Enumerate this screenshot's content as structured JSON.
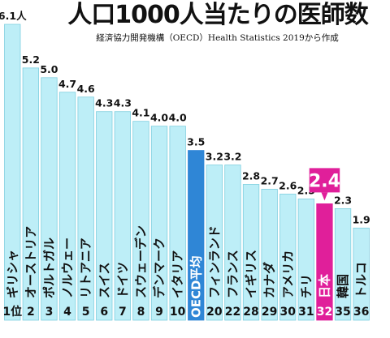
{
  "header": {
    "title": "人口1000人当たりの医師数",
    "subtitle": "経済協力開発機構（OECD）Health Statistics 2019から作成"
  },
  "colors": {
    "bar": "#bdeef7",
    "bar_stroke": "#7fcfdf",
    "oecd": "#2f86d6",
    "japan": "#e01f9a",
    "text": "#111111",
    "highlight_text": "#ffffff"
  },
  "chart_data": {
    "type": "bar",
    "title": "人口1000人当たりの医師数",
    "subtitle": "経済協力開発機構（OECD）Health Statistics 2019から作成",
    "categories": [
      "ギリシャ",
      "オーストリア",
      "ポルトガル",
      "ノルウェー",
      "リトアニア",
      "スイス",
      "ドイツ",
      "スウェーデン",
      "デンマーク",
      "イタリア",
      "OECD平均",
      "フィンランド",
      "フランス",
      "イギリス",
      "カナダ",
      "アメリカ",
      "チリ",
      "日本",
      "韓国",
      "トルコ"
    ],
    "ranks": [
      "1位",
      "2",
      "3",
      "4",
      "5",
      "6",
      "7",
      "8",
      "9",
      "10",
      "",
      "20",
      "22",
      "28",
      "29",
      "30",
      "31",
      "32",
      "35",
      "36"
    ],
    "value_labels": [
      "6.1人",
      "5.2",
      "5.0",
      "4.7",
      "4.6",
      "4.3",
      "4.3",
      "4.1",
      "4.0",
      "4.0",
      "3.5",
      "3.2",
      "3.2",
      "2.8",
      "2.7",
      "2.6",
      "2.5",
      "2.4",
      "2.3",
      "1.9"
    ],
    "values": [
      6.1,
      5.2,
      5.0,
      4.7,
      4.6,
      4.3,
      4.3,
      4.1,
      4.0,
      4.0,
      3.5,
      3.2,
      3.2,
      2.8,
      2.7,
      2.6,
      2.5,
      2.4,
      2.3,
      1.9
    ],
    "highlight": {
      "oecd_index": 10,
      "japan_index": 17
    },
    "xlabel": "",
    "ylabel": "",
    "ylim": [
      0,
      6.1
    ],
    "grid": false,
    "legend": "none"
  }
}
